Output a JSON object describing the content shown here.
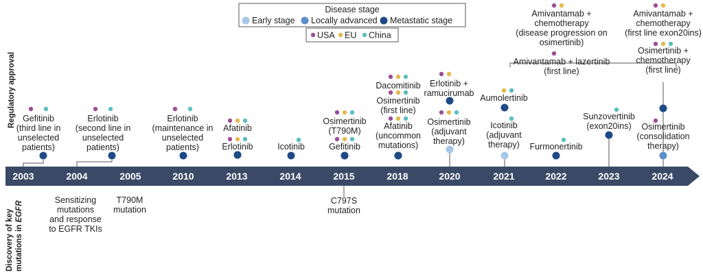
{
  "axis_labels": {
    "regulatory": "Regulatory approval",
    "discovery_line1": "Discovery of key",
    "discovery_line2": "mutations in ",
    "discovery_gene": "EGFR"
  },
  "legend": {
    "disease_stage_title": "Disease stage",
    "stages": [
      {
        "key": "early",
        "label": "Early stage",
        "color": "#a7c7e7"
      },
      {
        "key": "locally",
        "label": "Locally advanced",
        "color": "#5b8fc7"
      },
      {
        "key": "metastatic",
        "label": "Metastatic stage",
        "color": "#1f4a85"
      }
    ],
    "regions": [
      {
        "key": "usa",
        "label": "USA",
        "color": "#9b4f96"
      },
      {
        "key": "eu",
        "label": "EU",
        "color": "#e3b94f"
      },
      {
        "key": "china",
        "label": "China",
        "color": "#5bbfbf"
      }
    ]
  },
  "years": [
    "2003",
    "2004",
    "2005",
    "2010",
    "2013",
    "2014",
    "2015",
    "2018",
    "2020",
    "2021",
    "2022",
    "2023",
    "2024"
  ],
  "approvals": [
    {
      "name": "gefitinib-2003",
      "year": "2003",
      "stage": "metastatic",
      "lines": [
        "Gefitinib",
        "(third line in",
        "unselected",
        "patients)"
      ],
      "regions": [
        "usa",
        "china"
      ]
    },
    {
      "name": "erlotinib-2004",
      "year": "2004",
      "stage": "metastatic",
      "lines": [
        "Erlotinib",
        "(second line in",
        "unselected",
        "patients)"
      ],
      "regions": [
        "usa",
        "china"
      ]
    },
    {
      "name": "erlotinib-2010",
      "year": "2010",
      "stage": "metastatic",
      "lines": [
        "Erlotinib",
        "(maintenance in",
        "unselected",
        "patients)"
      ],
      "regions": [
        "usa",
        "china"
      ]
    },
    {
      "name": "afatinib-2013",
      "year": "2013",
      "stage": "metastatic",
      "lines": [
        "Afatinib"
      ],
      "regions": [
        "usa",
        "eu",
        "china"
      ]
    },
    {
      "name": "erlotinib-2013",
      "year": "2013",
      "stage": "metastatic",
      "lines": [
        "Erlotinib"
      ],
      "regions": [
        "usa",
        "eu",
        "china"
      ]
    },
    {
      "name": "icotinib-2014",
      "year": "2014",
      "stage": "metastatic",
      "lines": [
        "Icotinib"
      ],
      "regions": [
        "china"
      ]
    },
    {
      "name": "osimertinib-2015",
      "year": "2015",
      "stage": "metastatic",
      "lines": [
        "Osimertinib",
        "(T790M)"
      ],
      "regions": [
        "usa",
        "eu",
        "china"
      ]
    },
    {
      "name": "gefitinib-2015",
      "year": "2015",
      "stage": "metastatic",
      "lines": [
        "Gefitinib"
      ],
      "regions": [
        "usa",
        "eu",
        "china"
      ]
    },
    {
      "name": "dacomitinib-2018",
      "year": "2018",
      "stage": "metastatic",
      "lines": [
        "Dacomitinib"
      ],
      "regions": [
        "usa",
        "eu",
        "china"
      ]
    },
    {
      "name": "osimertinib-2018",
      "year": "2018",
      "stage": "metastatic",
      "lines": [
        "Osimertinib",
        "(first line)"
      ],
      "regions": [
        "usa",
        "eu",
        "china"
      ]
    },
    {
      "name": "afatinib-2018",
      "year": "2018",
      "stage": "metastatic",
      "lines": [
        "Afatinib",
        "(uncommon",
        "mutations)"
      ],
      "regions": [
        "usa",
        "eu",
        "china"
      ]
    },
    {
      "name": "erlotinib-ram-2020",
      "year": "2020",
      "stage": "metastatic",
      "lines": [
        "Erlotinib +",
        "ramucirumab"
      ],
      "regions": [
        "usa",
        "eu"
      ]
    },
    {
      "name": "osimertinib-adj-2020",
      "year": "2020",
      "stage": "early",
      "lines": [
        "Osimertinib",
        "(adjuvant",
        "therapy)"
      ],
      "regions": [
        "usa",
        "eu",
        "china"
      ]
    },
    {
      "name": "aumolertinib-2021",
      "year": "2021",
      "stage": "metastatic",
      "lines": [
        "Aumolertinib"
      ],
      "regions": [
        "eu",
        "china"
      ]
    },
    {
      "name": "icotinib-adj-2021",
      "year": "2021",
      "stage": "early",
      "lines": [
        "Icotinib",
        "(adjuvant",
        "therapy)"
      ],
      "regions": [
        "china"
      ]
    },
    {
      "name": "furmonertinib-2022",
      "year": "2022",
      "stage": "metastatic",
      "lines": [
        "Furmonertinib"
      ],
      "regions": [
        "china"
      ]
    },
    {
      "name": "sunzovertinib-2023",
      "year": "2023",
      "stage": "metastatic",
      "lines": [
        "Sunzovertinib",
        "(exon20ins)"
      ],
      "regions": [
        "china"
      ]
    },
    {
      "name": "amivantamab-chemo-prog-2024",
      "year": "2024",
      "stage": "metastatic",
      "lines": [
        "Amivantamab +",
        "chemotherapy",
        "(disease progression on",
        "osimertinib)"
      ],
      "regions": [
        "usa",
        "eu"
      ]
    },
    {
      "name": "amivantamab-lazertinib-2024",
      "year": "2024",
      "stage": "metastatic",
      "lines": [
        "Amivantamab + lazertinib",
        "(first line)"
      ],
      "regions": [
        "usa"
      ]
    },
    {
      "name": "amivantamab-chemo-exon20-2024",
      "year": "2024",
      "stage": "metastatic",
      "lines": [
        "Amivantamab +",
        "chemotherapy",
        "(first line exon20ins)"
      ],
      "regions": [
        "usa",
        "eu"
      ]
    },
    {
      "name": "osimertinib-chemo-2024",
      "year": "2024",
      "stage": "metastatic",
      "lines": [
        "Osimertinib +",
        "chemotherapy",
        "(first line)"
      ],
      "regions": [
        "usa",
        "eu",
        "china"
      ]
    },
    {
      "name": "osimertinib-consol-2024",
      "year": "2024",
      "stage": "locally",
      "lines": [
        "Osimertinib",
        "(consolidation",
        "therapy)"
      ],
      "regions": [
        "usa"
      ]
    }
  ],
  "discoveries": [
    {
      "name": "sensitizing-2004",
      "year": "2004",
      "lines": [
        "Sensitizing",
        "mutations",
        "and response",
        "to EGFR TKIs"
      ]
    },
    {
      "name": "t790m-2005",
      "year": "2005",
      "lines": [
        "T790M",
        "mutation"
      ]
    },
    {
      "name": "c797s-2015",
      "year": "2015",
      "lines": [
        "C797S",
        "mutation"
      ]
    }
  ]
}
